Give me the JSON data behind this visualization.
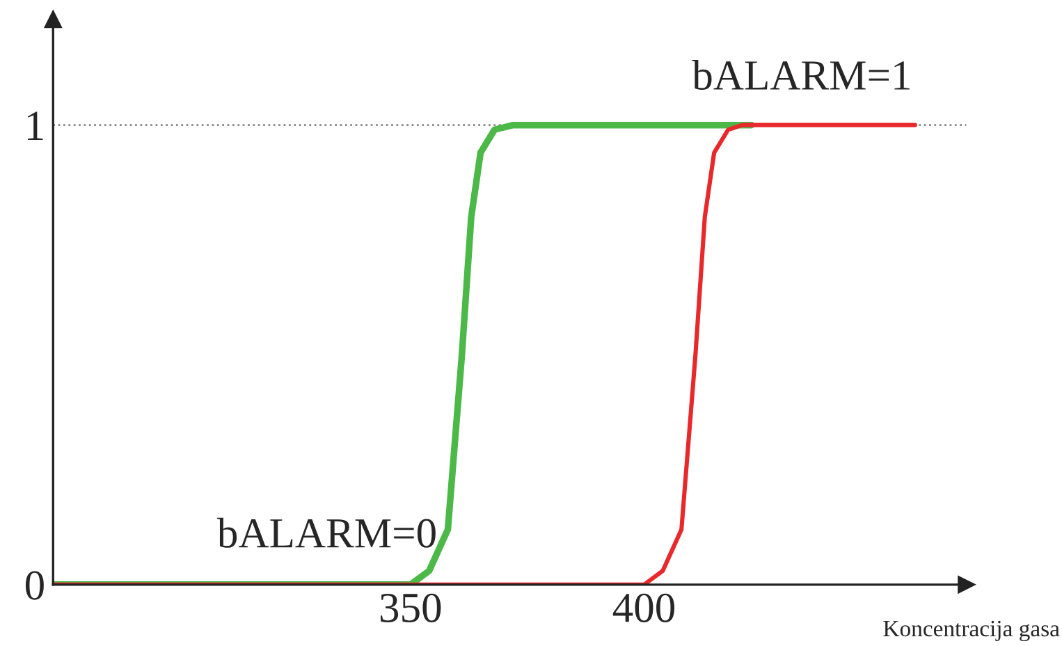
{
  "chart_data": {
    "type": "line",
    "xlabel": "Koncentracija gasa",
    "xlim": [
      273.5,
      469
    ],
    "ylim": [
      0,
      1.23
    ],
    "xticks": [
      350,
      400
    ],
    "yticks": [
      0,
      1
    ],
    "series": [
      {
        "color": "#4cb848",
        "x": [
          273.5,
          350,
          354,
          358,
          361,
          363,
          365,
          368,
          372,
          376,
          423
        ],
        "values": [
          0,
          0,
          0.03,
          0.12,
          0.5,
          0.8,
          0.94,
          0.99,
          1,
          1,
          1
        ]
      },
      {
        "color": "#e8282b",
        "x": [
          273.5,
          400,
          404,
          408,
          411,
          413,
          415,
          418,
          421,
          424,
          458
        ],
        "values": [
          0,
          0,
          0.03,
          0.12,
          0.5,
          0.8,
          0.94,
          0.99,
          1,
          1,
          1
        ]
      }
    ],
    "ref_lines": [
      {
        "axis": "y",
        "value": 1,
        "color": "#888888",
        "line_style": "dotted"
      }
    ],
    "annotations": [
      "bALARM=1",
      "bALARM=0"
    ],
    "grid": false,
    "legend": false,
    "line_style": "solid",
    "marker": "none"
  }
}
